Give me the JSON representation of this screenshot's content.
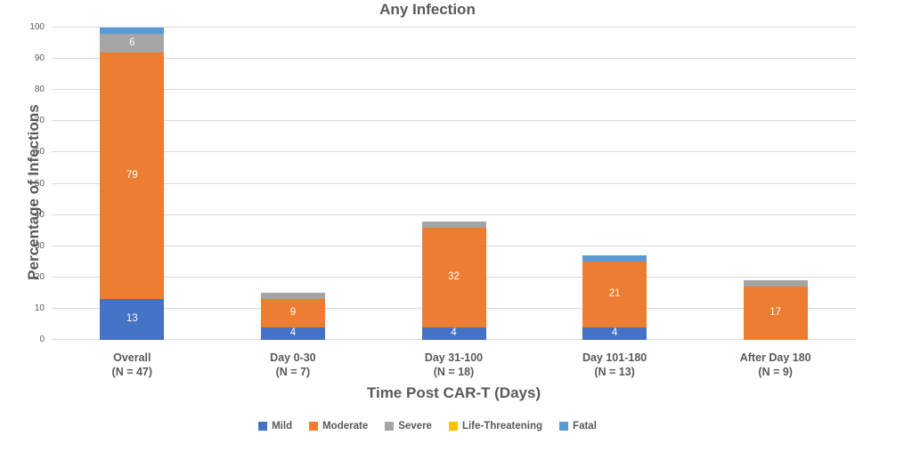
{
  "title": "Any Infection",
  "chart_data": {
    "type": "bar",
    "stacked": true,
    "title": "Any Infection",
    "xlabel": "Time Post CAR-T (Days)",
    "ylabel": "Percentage of Infections",
    "ylim": [
      0,
      100
    ],
    "y_ticks": [
      0,
      10,
      20,
      30,
      40,
      50,
      60,
      70,
      80,
      90,
      100
    ],
    "grid": true,
    "legend_position": "bottom",
    "categories": [
      {
        "label": "Overall",
        "n": "(N = 47)"
      },
      {
        "label": "Day 0-30",
        "n": "(N = 7)"
      },
      {
        "label": "Day 31-100",
        "n": "(N = 18)"
      },
      {
        "label": "Day 101-180",
        "n": "(N = 13)"
      },
      {
        "label": "After Day 180",
        "n": "(N = 9)"
      }
    ],
    "series": [
      {
        "name": "Mild",
        "color": "#4472C4",
        "values": [
          13,
          4,
          4,
          4,
          0
        ]
      },
      {
        "name": "Moderate",
        "color": "#ED7D31",
        "values": [
          79,
          9,
          32,
          21,
          17
        ]
      },
      {
        "name": "Severe",
        "color": "#A5A5A5",
        "values": [
          6,
          2,
          2,
          0,
          2
        ]
      },
      {
        "name": "Life-Threatening",
        "color": "#FFC000",
        "values": [
          0,
          0,
          0,
          0,
          0
        ]
      },
      {
        "name": "Fatal",
        "color": "#5B9BD5",
        "values": [
          2,
          0,
          0,
          2,
          0
        ]
      }
    ],
    "data_label_color": "#FFFFFF",
    "data_label_min": 3,
    "colors": {
      "text": "#595959",
      "gridline": "#D9D9D9"
    }
  }
}
